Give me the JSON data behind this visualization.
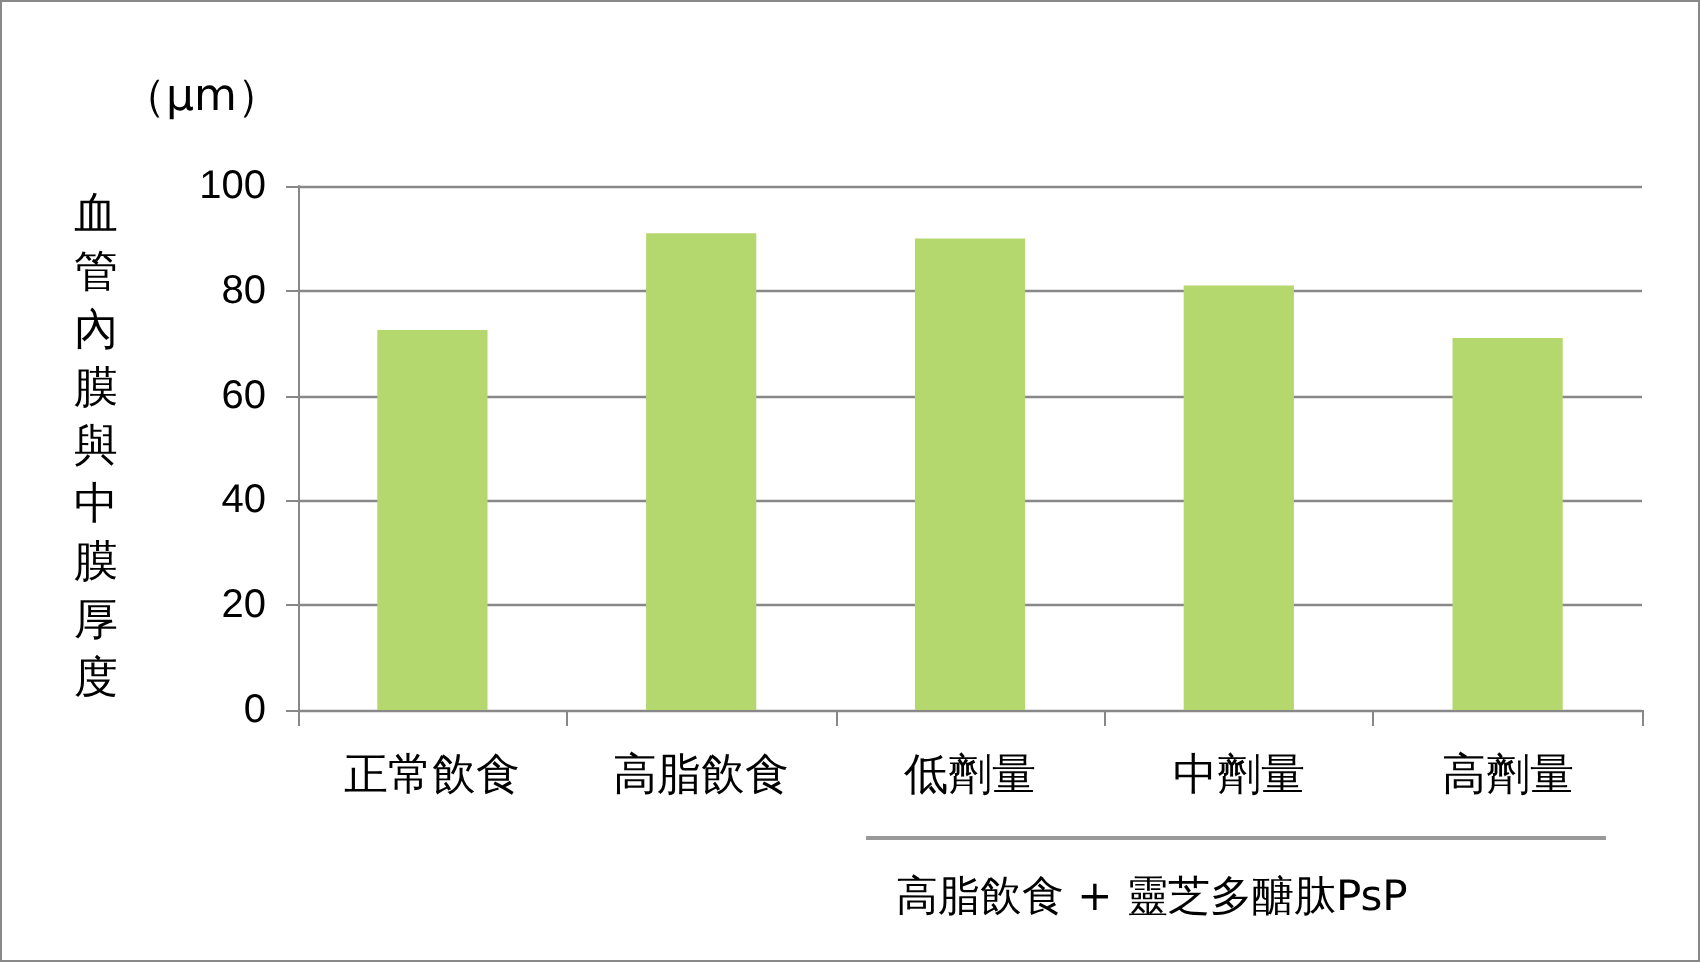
{
  "chart_data": {
    "type": "bar",
    "ylabel": "血管內膜與中膜厚度",
    "annotations": [
      "（μm）",
      "高脂飲食 + 靈芝多醣肽PsP"
    ],
    "categories": [
      "正常飲食",
      "高脂飲食",
      "低劑量",
      "中劑量",
      "高劑量"
    ],
    "values": [
      72.5,
      91,
      90,
      81,
      71
    ],
    "color": "#b5d86e",
    "ylim": [
      0,
      100
    ],
    "yticks": [
      0,
      20,
      40,
      60,
      80,
      100
    ],
    "grid": "y"
  }
}
